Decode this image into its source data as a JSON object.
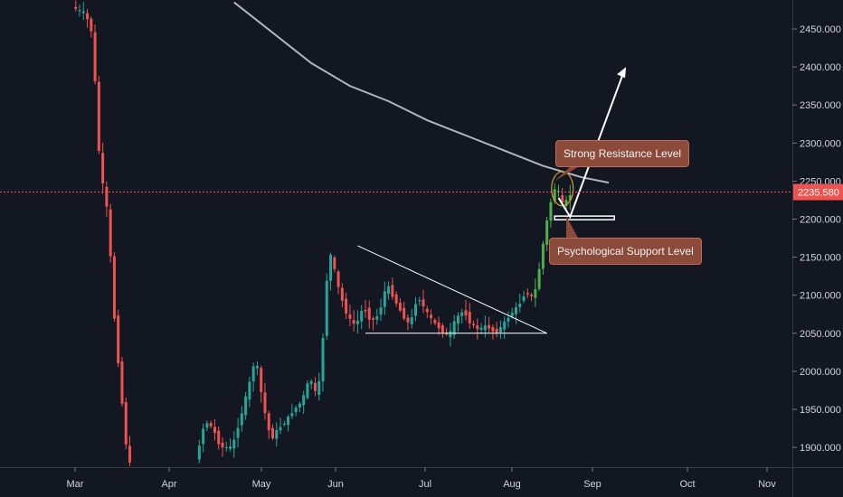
{
  "chart_data": {
    "type": "candlestick",
    "title": "",
    "xlabel": "",
    "ylabel": "",
    "ylim": [
      1875,
      2485
    ],
    "yticks": [
      1900,
      1950,
      2000,
      2050,
      2100,
      2150,
      2200,
      2250,
      2300,
      2350,
      2400,
      2450
    ],
    "ytick_labels": [
      "1900.000",
      "1950.000",
      "2000.000",
      "2050.000",
      "2100.000",
      "2150.000",
      "2200.000",
      "2250.000",
      "2300.000",
      "2350.000",
      "2400.000",
      "2450.000"
    ],
    "xtick_labels": [
      "Mar",
      "Apr",
      "May",
      "Jun",
      "Jul",
      "Aug",
      "Sep",
      "Oct",
      "Nov"
    ],
    "current_price": 2235.58,
    "current_price_label": "2235.580",
    "grid": false,
    "colors": {
      "up": "#26a69a",
      "up_bright": "#4caf50",
      "down": "#ef5350",
      "background": "#131722",
      "ma_line": "#b2b5be",
      "price_line": "#ef5350"
    },
    "moving_average": [
      {
        "day": 40,
        "value": 2485
      },
      {
        "day": 50,
        "value": 2445
      },
      {
        "day": 60,
        "value": 2405
      },
      {
        "day": 70,
        "value": 2375
      },
      {
        "day": 80,
        "value": 2355
      },
      {
        "day": 90,
        "value": 2330
      },
      {
        "day": 100,
        "value": 2310
      },
      {
        "day": 110,
        "value": 2290
      },
      {
        "day": 120,
        "value": 2270
      },
      {
        "day": 130,
        "value": 2255
      },
      {
        "day": 137,
        "value": 2248
      }
    ],
    "annotations": [
      {
        "text": "Strong Resistance Level",
        "type": "callout",
        "target": {
          "day": 137,
          "value": 2250
        }
      },
      {
        "text": "Psychological Support Level",
        "type": "callout",
        "target": {
          "day": 138,
          "value": 2202
        }
      }
    ]
  }
}
